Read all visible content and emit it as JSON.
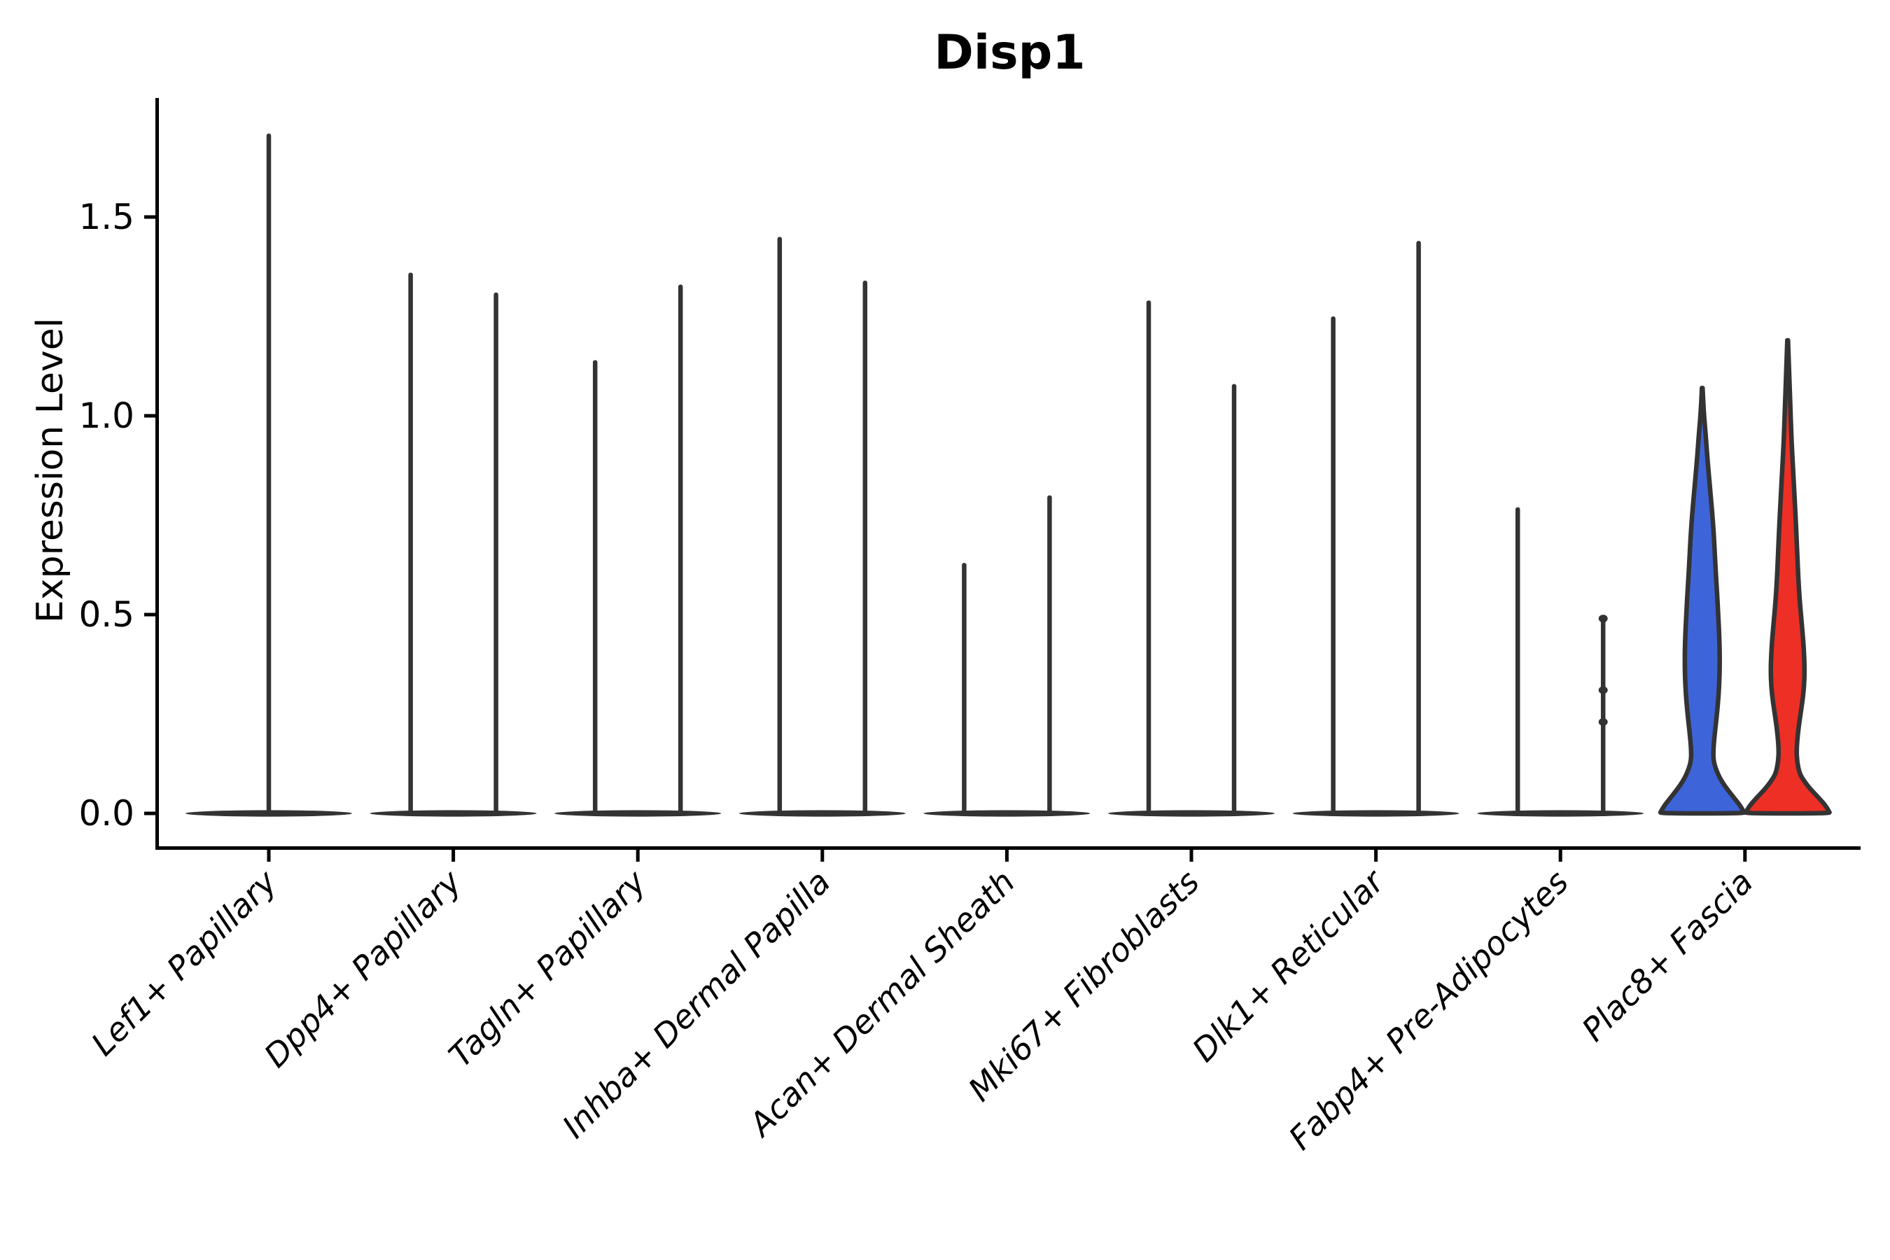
{
  "chart_data": {
    "type": "violin",
    "title": "Disp1",
    "ylabel": "Expression Level",
    "xlabel": "",
    "grid": false,
    "legend": "none",
    "ylim": [
      0,
      1.8
    ],
    "y_ticks": [
      "0.0",
      "0.5",
      "1.0",
      "1.5"
    ],
    "y_tick_values": [
      0.0,
      0.5,
      1.0,
      1.5
    ],
    "categories": [
      "Lef1+ Papillary",
      "Dpp4+ Papillary",
      "Tagln+ Papillary",
      "Inhba+ Dermal Papilla",
      "Acan+ Dermal Sheath",
      "Mki67+ Fibroblasts",
      "Dlk1+ Reticular",
      "Fabp4+ Pre-Adipocytes",
      "Plac8+ Fascia"
    ],
    "colors": {
      "outline": "#333333",
      "group1_blue": "#3E64D9",
      "group2_red": "#ED2F26"
    },
    "description": "Split violin plot; most cell types show near-zero expression (flat base with thin spike to the max value). Plac8+ Fascia shows two filled violins (blue and red groups).",
    "violins": [
      {
        "category": "Lef1+ Papillary",
        "components": [
          {
            "kind": "spike",
            "slot": 0,
            "max": 1.71
          }
        ]
      },
      {
        "category": "Dpp4+ Papillary",
        "components": [
          {
            "kind": "spike",
            "slot": -1,
            "max": 1.36
          },
          {
            "kind": "spike",
            "slot": 1,
            "max": 1.31
          }
        ]
      },
      {
        "category": "Tagln+ Papillary",
        "components": [
          {
            "kind": "spike",
            "slot": -1,
            "max": 1.14
          },
          {
            "kind": "spike",
            "slot": 1,
            "max": 1.33
          }
        ]
      },
      {
        "category": "Inhba+ Dermal Papilla",
        "components": [
          {
            "kind": "spike",
            "slot": -1,
            "max": 1.45
          },
          {
            "kind": "spike",
            "slot": 1,
            "max": 1.34
          }
        ]
      },
      {
        "category": "Acan+ Dermal Sheath",
        "components": [
          {
            "kind": "spike",
            "slot": -1,
            "max": 0.63
          },
          {
            "kind": "spike",
            "slot": 1,
            "max": 0.8
          }
        ]
      },
      {
        "category": "Mki67+ Fibroblasts",
        "components": [
          {
            "kind": "spike",
            "slot": -1,
            "max": 1.29
          },
          {
            "kind": "spike",
            "slot": 1,
            "max": 1.08
          }
        ]
      },
      {
        "category": "Dlk1+ Reticular",
        "components": [
          {
            "kind": "spike",
            "slot": -1,
            "max": 1.25
          },
          {
            "kind": "spike",
            "slot": 1,
            "max": 1.44
          }
        ]
      },
      {
        "category": "Fabp4+ Pre-Adipocytes",
        "components": [
          {
            "kind": "spike",
            "slot": -1,
            "max": 0.77
          },
          {
            "kind": "spike",
            "slot": 1,
            "max": 0.49,
            "dots": [
              0.49,
              0.31,
              0.23
            ]
          }
        ]
      },
      {
        "category": "Plac8+ Fascia",
        "components": [
          {
            "kind": "violin",
            "slot": -1,
            "max": 1.07,
            "color": "#3E64D9",
            "profile": [
              [
                1.07,
                0.5
              ],
              [
                1.03,
                1.5
              ],
              [
                0.99,
                3.0
              ],
              [
                0.95,
                5.0
              ],
              [
                0.9,
                7.0
              ],
              [
                0.85,
                9.5
              ],
              [
                0.8,
                12.0
              ],
              [
                0.75,
                14.5
              ],
              [
                0.7,
                16.5
              ],
              [
                0.65,
                18.0
              ],
              [
                0.6,
                19.5
              ],
              [
                0.55,
                21.3
              ],
              [
                0.5,
                22.8
              ],
              [
                0.45,
                24.2
              ],
              [
                0.4,
                25.0
              ],
              [
                0.35,
                24.8
              ],
              [
                0.3,
                23.5
              ],
              [
                0.25,
                21.0
              ],
              [
                0.2,
                17.8
              ],
              [
                0.16,
                15.8
              ],
              [
                0.13,
                16.0
              ],
              [
                0.1,
                22.0
              ],
              [
                0.08,
                28.0
              ],
              [
                0.06,
                36.0
              ],
              [
                0.04,
                45.0
              ],
              [
                0.02,
                54.0
              ],
              [
                0.005,
                59.0
              ],
              [
                0.0,
                60.5
              ]
            ]
          },
          {
            "kind": "violin",
            "slot": 1,
            "max": 1.19,
            "color": "#ED2F26",
            "profile": [
              [
                1.19,
                0.5
              ],
              [
                1.14,
                1.5
              ],
              [
                1.09,
                2.5
              ],
              [
                1.04,
                3.5
              ],
              [
                0.99,
                4.5
              ],
              [
                0.94,
                5.5
              ],
              [
                0.89,
                7.0
              ],
              [
                0.84,
                8.5
              ],
              [
                0.79,
                10.0
              ],
              [
                0.74,
                11.5
              ],
              [
                0.69,
                12.8
              ],
              [
                0.64,
                14.0
              ],
              [
                0.59,
                15.3
              ],
              [
                0.54,
                17.0
              ],
              [
                0.49,
                19.5
              ],
              [
                0.44,
                22.0
              ],
              [
                0.4,
                23.5
              ],
              [
                0.36,
                24.2
              ],
              [
                0.32,
                23.5
              ],
              [
                0.28,
                21.0
              ],
              [
                0.24,
                17.5
              ],
              [
                0.2,
                14.5
              ],
              [
                0.16,
                12.7
              ],
              [
                0.13,
                13.5
              ],
              [
                0.1,
                17.0
              ],
              [
                0.08,
                24.0
              ],
              [
                0.06,
                33.0
              ],
              [
                0.04,
                44.0
              ],
              [
                0.02,
                54.0
              ],
              [
                0.005,
                59.0
              ],
              [
                0.0,
                60.5
              ]
            ]
          }
        ]
      }
    ]
  }
}
